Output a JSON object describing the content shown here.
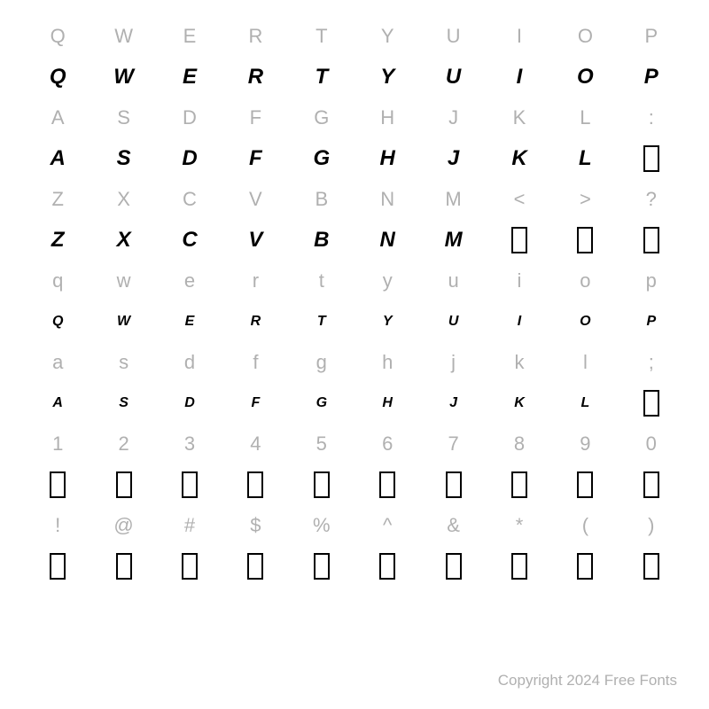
{
  "grid": {
    "columns": 10,
    "rows": [
      {
        "type": "label",
        "cells": [
          "Q",
          "W",
          "E",
          "R",
          "T",
          "Y",
          "U",
          "I",
          "O",
          "P"
        ]
      },
      {
        "type": "glyph",
        "cells": [
          "Q",
          "W",
          "E",
          "R",
          "T",
          "Y",
          "U",
          "I",
          "O",
          "P"
        ],
        "notdef": []
      },
      {
        "type": "label",
        "cells": [
          "A",
          "S",
          "D",
          "F",
          "G",
          "H",
          "J",
          "K",
          "L",
          ":"
        ]
      },
      {
        "type": "glyph",
        "cells": [
          "A",
          "S",
          "D",
          "F",
          "G",
          "H",
          "J",
          "K",
          "L",
          ""
        ],
        "notdef": [
          9
        ]
      },
      {
        "type": "label",
        "cells": [
          "Z",
          "X",
          "C",
          "V",
          "B",
          "N",
          "M",
          "<",
          ">",
          "?"
        ]
      },
      {
        "type": "glyph",
        "cells": [
          "Z",
          "X",
          "C",
          "V",
          "B",
          "N",
          "M",
          "",
          "",
          ""
        ],
        "notdef": [
          7,
          8,
          9
        ]
      },
      {
        "type": "label",
        "cells": [
          "q",
          "w",
          "e",
          "r",
          "t",
          "y",
          "u",
          "i",
          "o",
          "p"
        ]
      },
      {
        "type": "glyph",
        "size": "small",
        "cells": [
          "Q",
          "W",
          "E",
          "R",
          "T",
          "Y",
          "U",
          "I",
          "O",
          "P"
        ],
        "notdef": []
      },
      {
        "type": "label",
        "cells": [
          "a",
          "s",
          "d",
          "f",
          "g",
          "h",
          "j",
          "k",
          "l",
          ";"
        ]
      },
      {
        "type": "glyph",
        "size": "small",
        "cells": [
          "A",
          "S",
          "D",
          "F",
          "G",
          "H",
          "J",
          "K",
          "L",
          ""
        ],
        "notdef": [
          9
        ]
      },
      {
        "type": "label",
        "cells": [
          "1",
          "2",
          "3",
          "4",
          "5",
          "6",
          "7",
          "8",
          "9",
          "0"
        ]
      },
      {
        "type": "glyph",
        "cells": [
          "",
          "",
          "",
          "",
          "",
          "",
          "",
          "",
          "",
          ""
        ],
        "notdef": [
          0,
          1,
          2,
          3,
          4,
          5,
          6,
          7,
          8,
          9
        ]
      },
      {
        "type": "label",
        "cells": [
          "!",
          "@",
          "#",
          "$",
          "%",
          "^",
          "&",
          "*",
          "(",
          ")"
        ]
      },
      {
        "type": "glyph",
        "cells": [
          "",
          "",
          "",
          "",
          "",
          "",
          "",
          "",
          "",
          ""
        ],
        "notdef": [
          0,
          1,
          2,
          3,
          4,
          5,
          6,
          7,
          8,
          9
        ]
      }
    ]
  },
  "copyright": "Copyright 2024 Free Fonts",
  "colors": {
    "label": "#b0b0b0",
    "glyph": "#000000",
    "background": "#ffffff"
  },
  "fontsize": {
    "label": 22,
    "glyph": 24,
    "glyph_small": 16,
    "copyright": 17
  }
}
